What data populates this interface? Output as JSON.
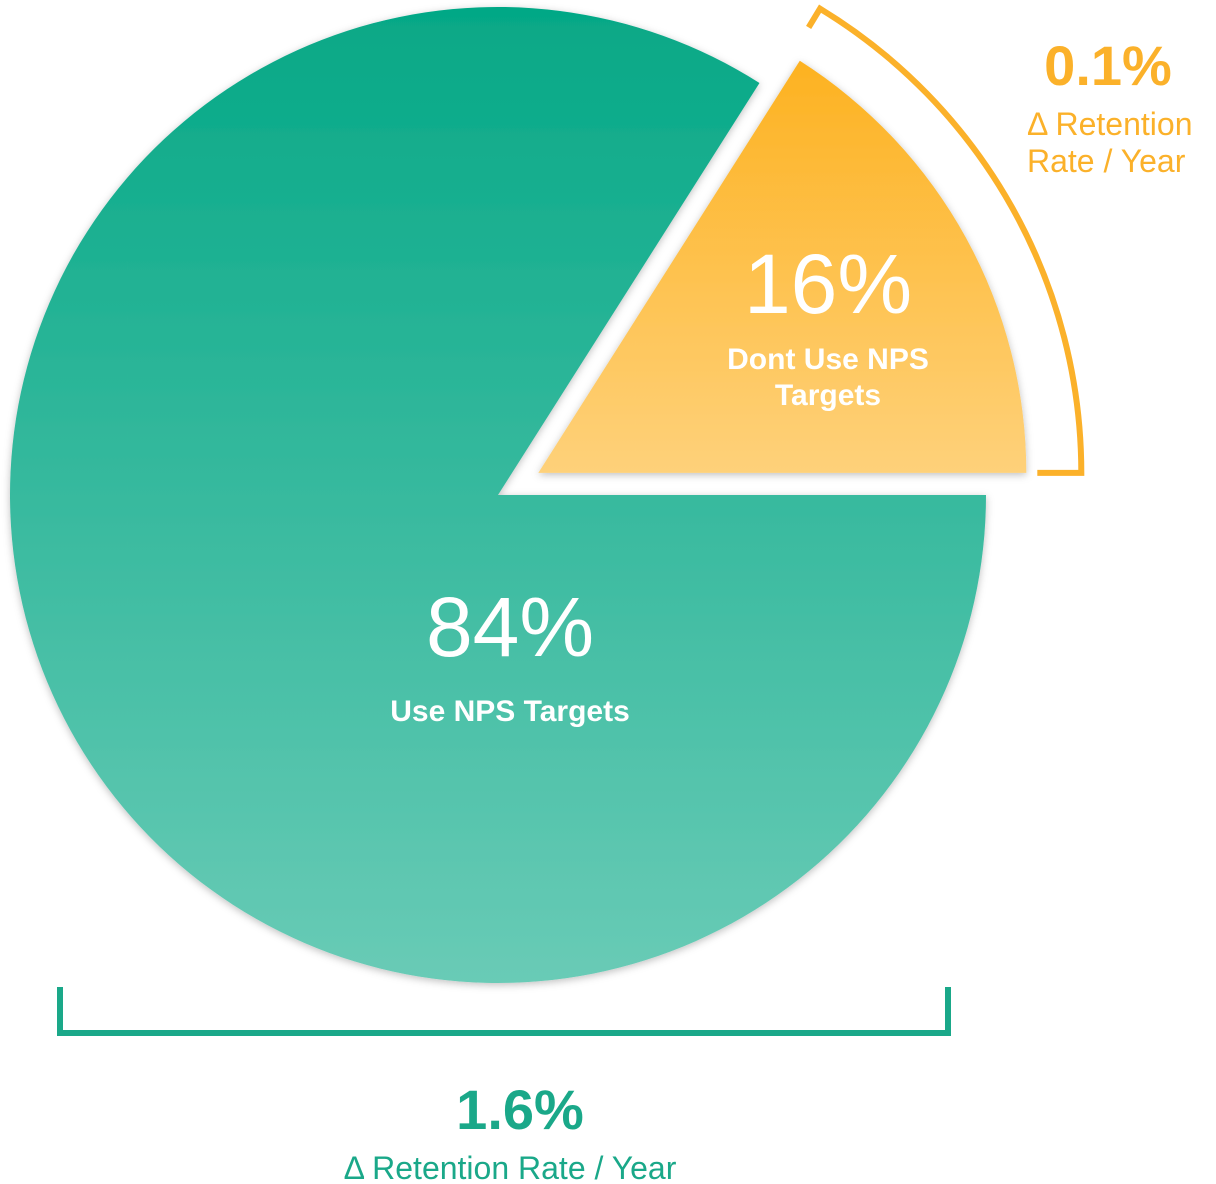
{
  "chart_data": {
    "type": "pie",
    "categories": [
      "Use NPS Targets",
      "Dont Use NPS Targets"
    ],
    "values": [
      84,
      16
    ],
    "value_labels": [
      "84%",
      "16%"
    ],
    "colors": [
      "#05a886",
      "#fdb221"
    ],
    "annotations": [
      {
        "value": "1.6%",
        "label": "Δ Retention Rate / Year"
      },
      {
        "value": "0.1%",
        "label": "Δ Retention Rate / Year"
      }
    ]
  }
}
